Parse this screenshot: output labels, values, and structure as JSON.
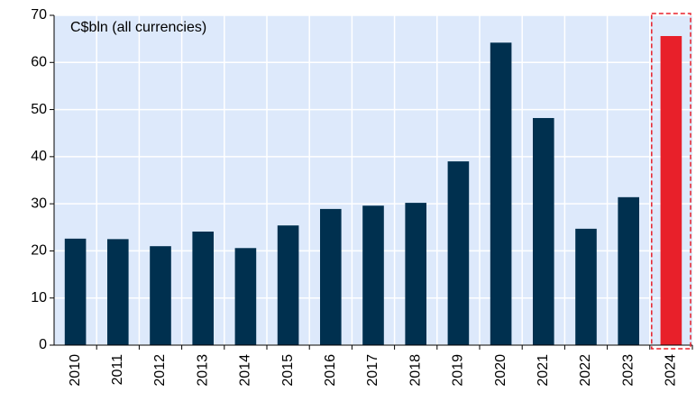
{
  "chart_data": {
    "type": "bar",
    "annotation": "C$bln (all currencies)",
    "categories": [
      "2010",
      "2011",
      "2012",
      "2013",
      "2014",
      "2015",
      "2016",
      "2017",
      "2018",
      "2019",
      "2020",
      "2021",
      "2022",
      "2023",
      "2024"
    ],
    "values": [
      22.6,
      22.5,
      21.0,
      24.1,
      20.6,
      25.4,
      28.9,
      29.6,
      30.2,
      39.0,
      64.2,
      48.2,
      24.7,
      31.4,
      65.6
    ],
    "colors": [
      "#00304f",
      "#00304f",
      "#00304f",
      "#00304f",
      "#00304f",
      "#00304f",
      "#00304f",
      "#00304f",
      "#00304f",
      "#00304f",
      "#00304f",
      "#00304f",
      "#00304f",
      "#00304f",
      "#e8202a"
    ],
    "ylim": [
      0,
      70
    ],
    "yticks": [
      0,
      10,
      20,
      30,
      40,
      50,
      60,
      70
    ],
    "grid": true
  }
}
